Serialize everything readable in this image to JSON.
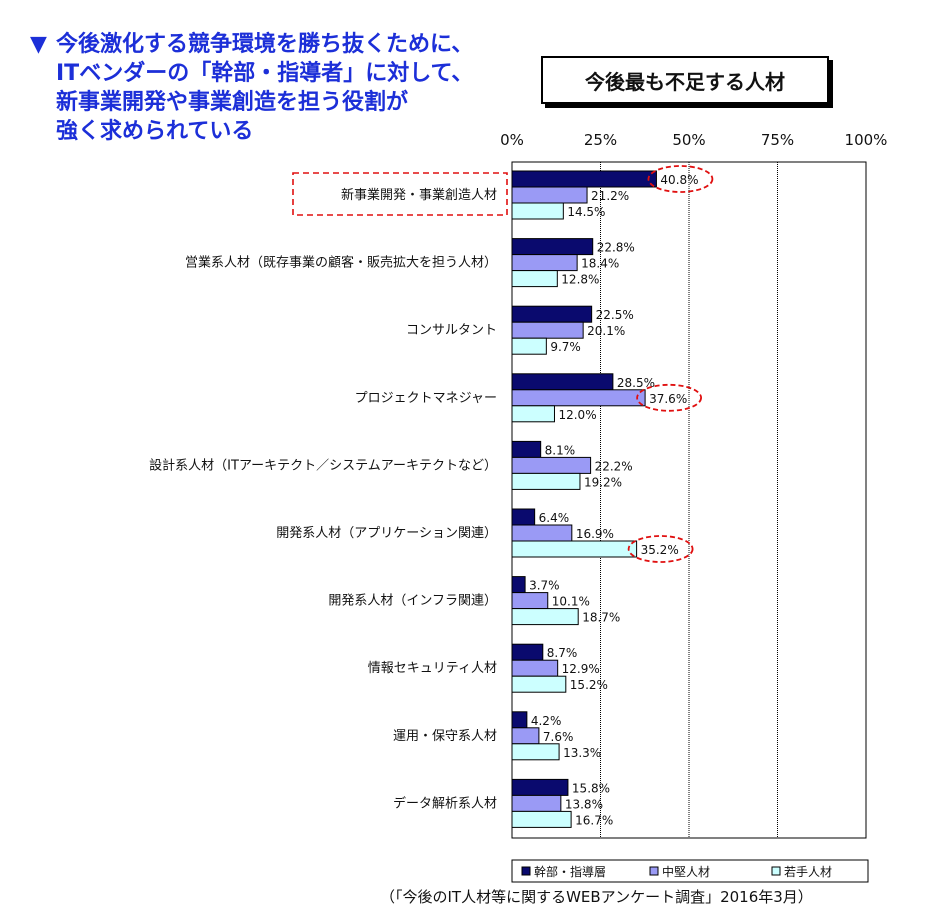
{
  "headline": {
    "marker": "▼",
    "lines": [
      "今後激化する競争環境を勝ち抜くために、",
      "ITベンダーの「幹部・指導者」に対して、",
      "新事業開発や事業創造を担う役割が",
      "強く求められている"
    ]
  },
  "source": "（「今後のIT人材等に関するWEBアンケート調査」2016年3月）",
  "colors": {
    "series": [
      "#0a0a6e",
      "#9a9af5",
      "#ccffff"
    ],
    "highlight": "#e01010"
  },
  "chart_data": {
    "type": "bar",
    "orientation": "horizontal",
    "title": "今後最も不足する人材",
    "categories": [
      "新事業開発・事業創造人材",
      "営業系人材（既存事業の顧客・販売拡大を担う人材）",
      "コンサルタント",
      "プロジェクトマネジャー",
      "設計系人材（ITアーキテクト／システムアーキテクトなど）",
      "開発系人材（アプリケーション関連）",
      "開発系人材（インフラ関連）",
      "情報セキュリティ人材",
      "運用・保守系人材",
      "データ解析系人材"
    ],
    "series": [
      {
        "name": "幹部・指導層",
        "values": [
          40.8,
          22.8,
          22.5,
          28.5,
          8.1,
          6.4,
          3.7,
          8.7,
          4.2,
          15.8
        ]
      },
      {
        "name": "中堅人材",
        "values": [
          21.2,
          18.4,
          20.1,
          37.6,
          22.2,
          16.9,
          10.1,
          12.9,
          7.6,
          13.8
        ]
      },
      {
        "name": "若手人材",
        "values": [
          14.5,
          12.8,
          9.7,
          12.0,
          19.2,
          35.2,
          18.7,
          15.2,
          13.3,
          16.7
        ]
      }
    ],
    "value_format": "{v}%",
    "xticks": [
      "0%",
      "25%",
      "50%",
      "75%",
      "100%"
    ],
    "xlim": [
      0,
      100
    ],
    "grid": "vertical dotted at 25% intervals",
    "legend_position": "bottom",
    "highlights": [
      {
        "category_index": 0,
        "series_index": 0
      },
      {
        "category_index": 3,
        "series_index": 1
      },
      {
        "category_index": 5,
        "series_index": 2
      }
    ],
    "highlighted_category_index": 0
  }
}
